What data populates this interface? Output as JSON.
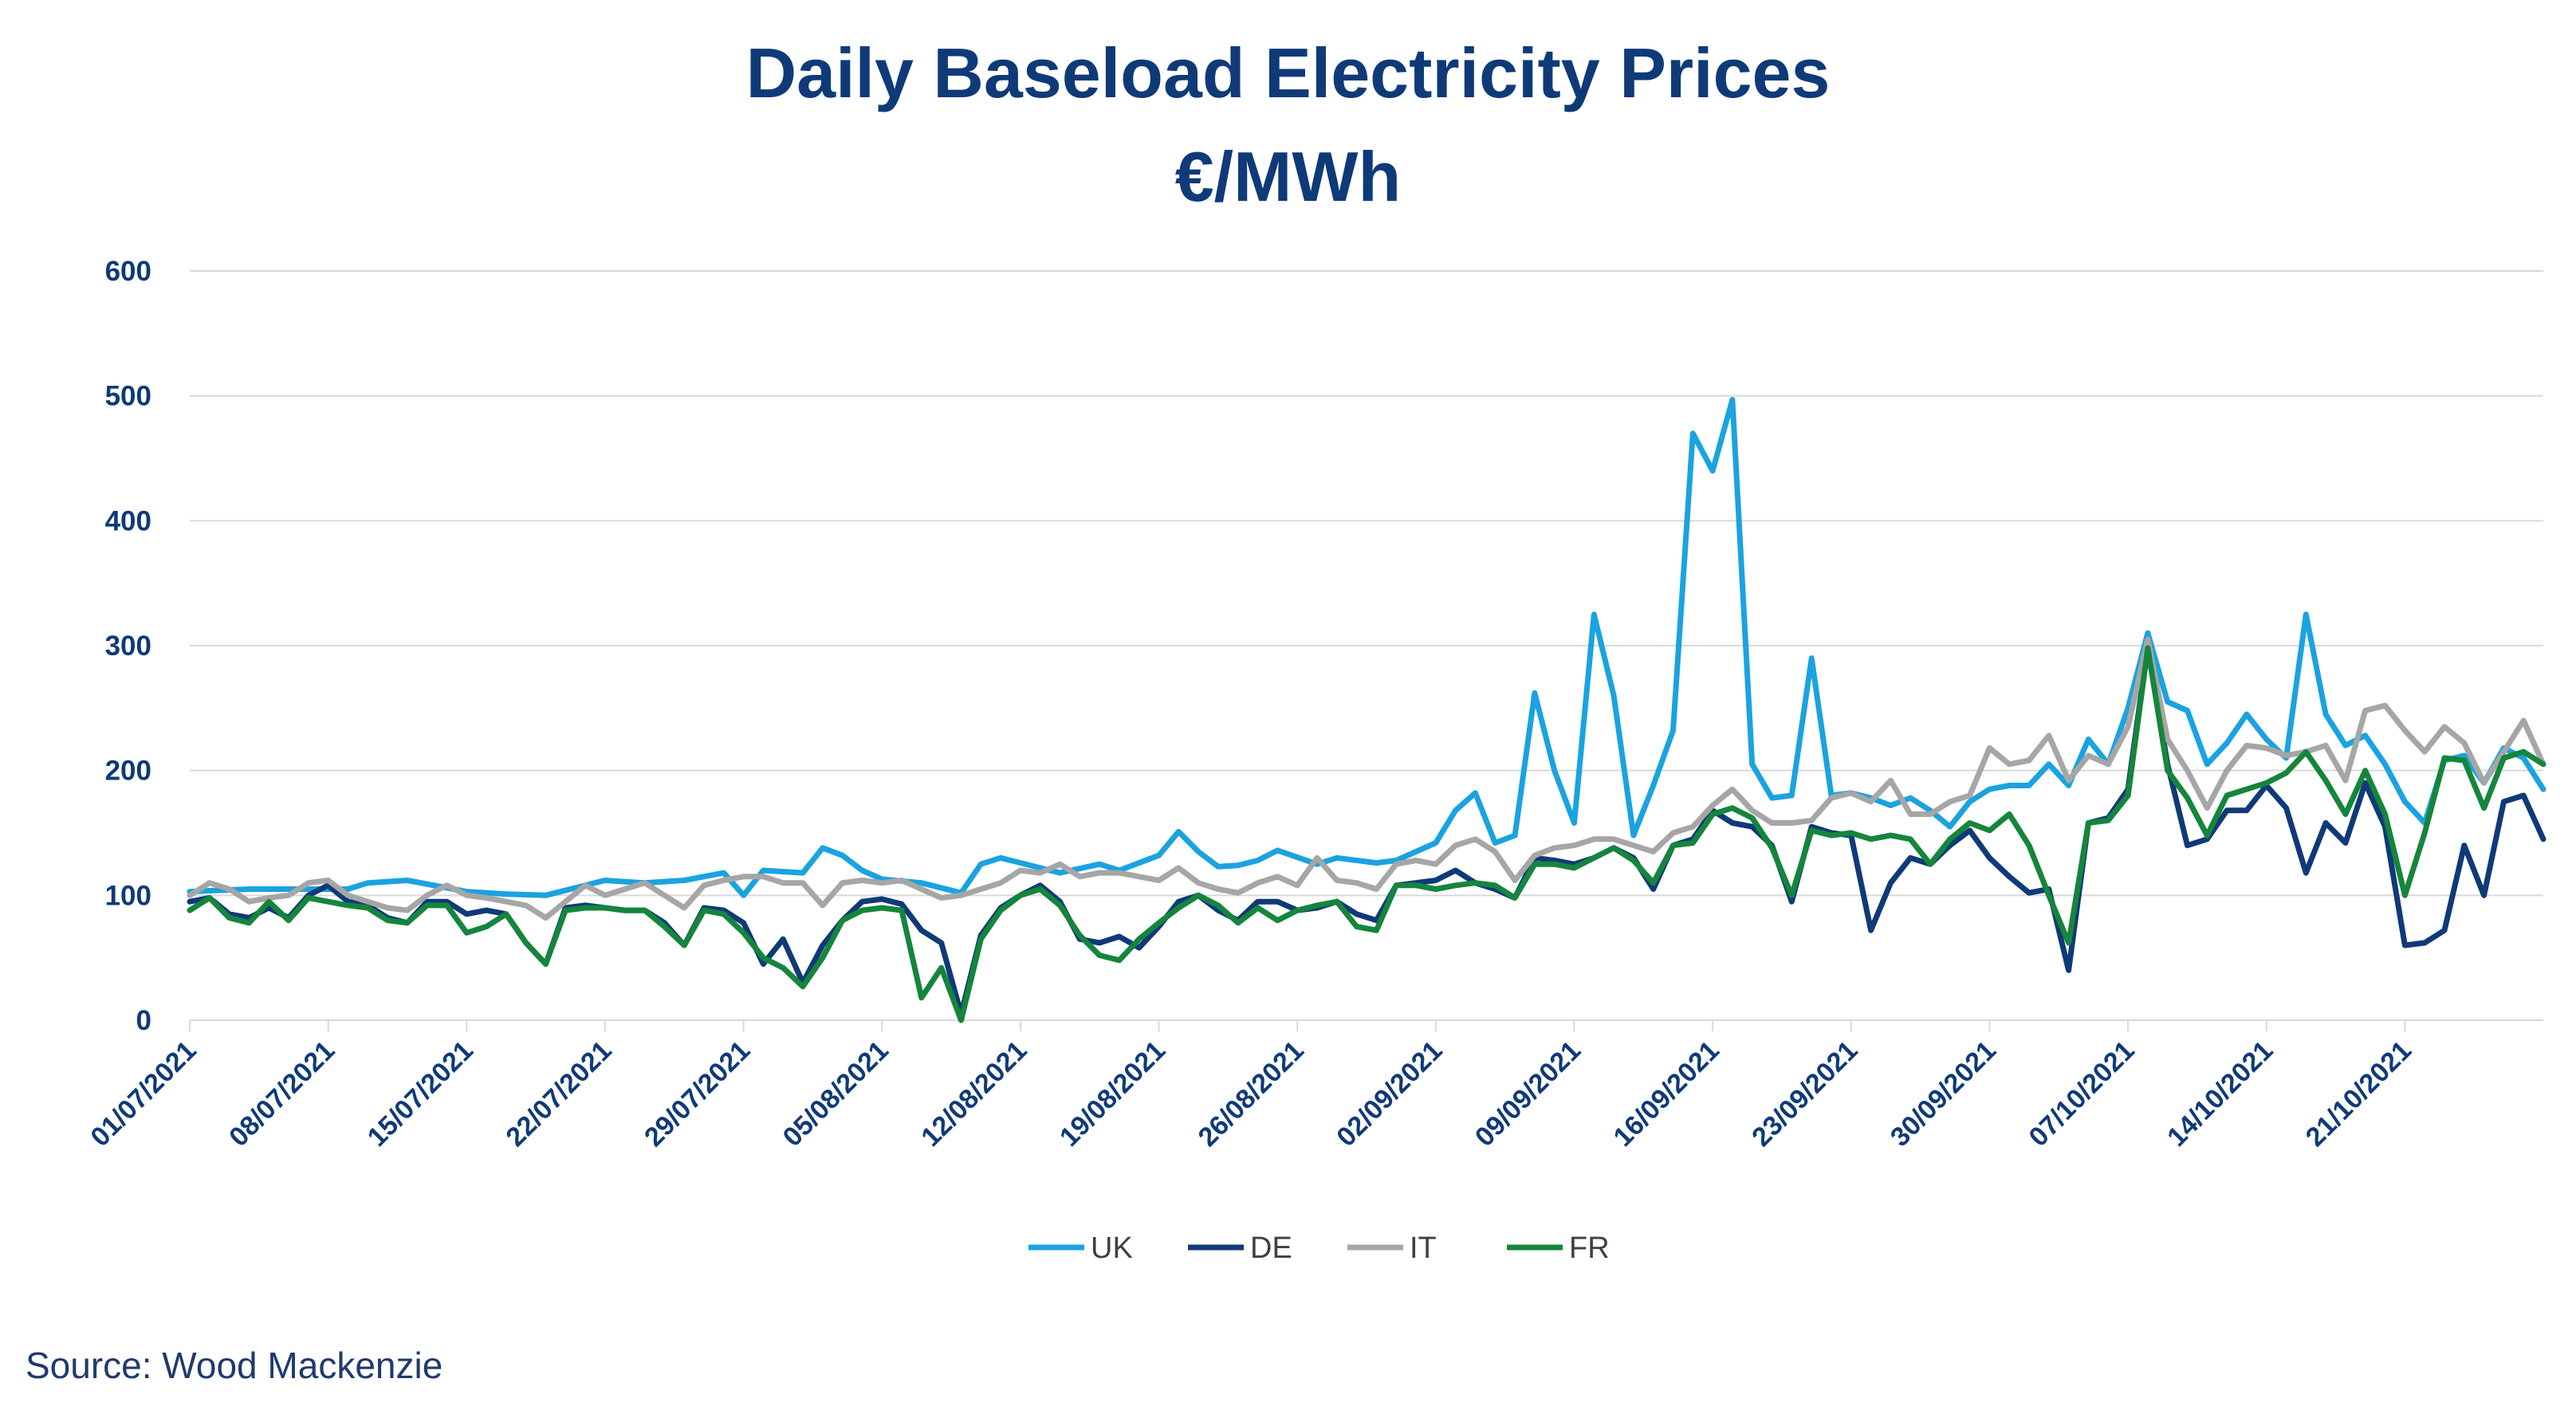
{
  "chart_data": {
    "type": "line",
    "title": "Daily Baseload Electricity Prices",
    "subtitle": "€/MWh",
    "ylim": [
      0,
      600
    ],
    "yticks": [
      0,
      100,
      200,
      300,
      400,
      500,
      600
    ],
    "grid": true,
    "legend_position": "bottom",
    "x_start": "01/07/2021",
    "x_end": "27/10/2021",
    "x_ticks": [
      "01/07/2021",
      "08/07/2021",
      "15/07/2021",
      "22/07/2021",
      "29/07/2021",
      "05/08/2021",
      "12/08/2021",
      "19/08/2021",
      "26/08/2021",
      "02/09/2021",
      "09/09/2021",
      "16/09/2021",
      "23/09/2021",
      "30/09/2021",
      "07/10/2021",
      "14/10/2021",
      "21/10/2021"
    ],
    "series": [
      {
        "name": "UK",
        "color": "#1aa3e0",
        "values": [
          "01/07/2021",
          103,
          "04/07/2021",
          105,
          "09/07/2021",
          105,
          "10/07/2021",
          110,
          "12/07/2021",
          112,
          "15/07/2021",
          103,
          "17/07/2021",
          101,
          "19/07/2021",
          100,
          "22/07/2021",
          112,
          "24/07/2021",
          110,
          "26/07/2021",
          112,
          "28/07/2021",
          118,
          "29/07/2021",
          100,
          "30/07/2021",
          120,
          "01/08/2021",
          118,
          "02/08/2021",
          138,
          "03/08/2021",
          132,
          "04/08/2021",
          120,
          "05/08/2021",
          113,
          "07/08/2021",
          110,
          "09/08/2021",
          102,
          "10/08/2021",
          125,
          "11/08/2021",
          130,
          "14/08/2021",
          118,
          "16/08/2021",
          125,
          "17/08/2021",
          120,
          "19/08/2021",
          132,
          "20/08/2021",
          151,
          "21/08/2021",
          135,
          "22/08/2021",
          123,
          "23/08/2021",
          124,
          "24/08/2021",
          128,
          "25/08/2021",
          136,
          "27/08/2021",
          125,
          "28/08/2021",
          130,
          "30/08/2021",
          126,
          "31/08/2021",
          128,
          "01/09/2021",
          135,
          "02/09/2021",
          142,
          "03/09/2021",
          168,
          "04/09/2021",
          182,
          "05/09/2021",
          142,
          "06/09/2021",
          148,
          "07/09/2021",
          262,
          "08/09/2021",
          200,
          "09/09/2021",
          158,
          "10/09/2021",
          325,
          "11/09/2021",
          260,
          "12/09/2021",
          148,
          "13/09/2021",
          188,
          "14/09/2021",
          232,
          "15/09/2021",
          470,
          "16/09/2021",
          440,
          "17/09/2021",
          497,
          "18/09/2021",
          205,
          "19/09/2021",
          178,
          "20/09/2021",
          180,
          "21/09/2021",
          290,
          "22/09/2021",
          180,
          "23/09/2021",
          182,
          "24/09/2021",
          178,
          "25/09/2021",
          172,
          "26/09/2021",
          178,
          "27/09/2021",
          168,
          "28/09/2021",
          155,
          "29/09/2021",
          175,
          "30/09/2021",
          185,
          "01/10/2021",
          188,
          "02/10/2021",
          188,
          "03/10/2021",
          205,
          "04/10/2021",
          188,
          "05/10/2021",
          225,
          "06/10/2021",
          205,
          "07/10/2021",
          250,
          "08/10/2021",
          310,
          "09/10/2021",
          255,
          "10/10/2021",
          248,
          "11/10/2021",
          205,
          "12/10/2021",
          222,
          "13/10/2021",
          245,
          "14/10/2021",
          225,
          "15/10/2021",
          210,
          "16/10/2021",
          325,
          "17/10/2021",
          245,
          "18/10/2021",
          220,
          "19/10/2021",
          228,
          "20/10/2021",
          205,
          "21/10/2021",
          175,
          "22/10/2021",
          158,
          "23/10/2021",
          208,
          "24/10/2021",
          212,
          "25/10/2021",
          190,
          "26/10/2021",
          218,
          "27/10/2021",
          210,
          "28/10/2021",
          185
        ]
      },
      {
        "name": "DE",
        "color": "#0f3a78",
        "values": [
          "01/07/2021",
          95,
          "02/07/2021",
          98,
          "03/07/2021",
          85,
          "04/07/2021",
          82,
          "05/07/2021",
          90,
          "06/07/2021",
          82,
          "07/07/2021",
          100,
          "08/07/2021",
          108,
          "09/07/2021",
          95,
          "10/07/2021",
          92,
          "11/07/2021",
          82,
          "12/07/2021",
          78,
          "13/07/2021",
          95,
          "14/07/2021",
          95,
          "15/07/2021",
          85,
          "16/07/2021",
          88,
          "17/07/2021",
          85,
          "18/07/2021",
          62,
          "19/07/2021",
          45,
          "20/07/2021",
          90,
          "21/07/2021",
          92,
          "22/07/2021",
          90,
          "23/07/2021",
          88,
          "24/07/2021",
          88,
          "25/07/2021",
          78,
          "26/07/2021",
          60,
          "27/07/2021",
          90,
          "28/07/2021",
          88,
          "29/07/2021",
          78,
          "30/07/2021",
          45,
          "31/07/2021",
          65,
          "01/08/2021",
          30,
          "02/08/2021",
          60,
          "03/08/2021",
          80,
          "04/08/2021",
          95,
          "05/08/2021",
          97,
          "06/08/2021",
          93,
          "07/08/2021",
          72,
          "08/08/2021",
          62,
          "09/08/2021",
          5,
          "10/08/2021",
          68,
          "11/08/2021",
          90,
          "12/08/2021",
          100,
          "13/08/2021",
          108,
          "14/08/2021",
          95,
          "15/08/2021",
          65,
          "16/08/2021",
          62,
          "17/08/2021",
          67,
          "18/08/2021",
          58,
          "19/08/2021",
          75,
          "20/08/2021",
          95,
          "21/08/2021",
          100,
          "22/08/2021",
          88,
          "23/08/2021",
          80,
          "24/08/2021",
          95,
          "25/08/2021",
          95,
          "26/08/2021",
          88,
          "27/08/2021",
          90,
          "28/08/2021",
          95,
          "29/08/2021",
          85,
          "30/08/2021",
          80,
          "31/08/2021",
          108,
          "01/09/2021",
          110,
          "02/09/2021",
          112,
          "03/09/2021",
          120,
          "04/09/2021",
          110,
          "05/09/2021",
          105,
          "06/09/2021",
          98,
          "07/09/2021",
          130,
          "08/09/2021",
          128,
          "09/09/2021",
          125,
          "10/09/2021",
          130,
          "11/09/2021",
          138,
          "12/09/2021",
          130,
          "13/09/2021",
          105,
          "14/09/2021",
          140,
          "15/09/2021",
          145,
          "16/09/2021",
          168,
          "17/09/2021",
          158,
          "18/09/2021",
          155,
          "19/09/2021",
          140,
          "20/09/2021",
          95,
          "21/09/2021",
          155,
          "22/09/2021",
          150,
          "23/09/2021",
          148,
          "24/09/2021",
          72,
          "25/09/2021",
          110,
          "26/09/2021",
          130,
          "27/09/2021",
          125,
          "28/09/2021",
          140,
          "29/09/2021",
          152,
          "30/09/2021",
          130,
          "01/10/2021",
          115,
          "02/10/2021",
          102,
          "03/10/2021",
          105,
          "04/10/2021",
          40,
          "05/10/2021",
          158,
          "06/10/2021",
          162,
          "07/10/2021",
          185,
          "08/10/2021",
          300,
          "09/10/2021",
          205,
          "10/10/2021",
          140,
          "11/10/2021",
          145,
          "12/10/2021",
          168,
          "13/10/2021",
          168,
          "14/10/2021",
          188,
          "15/10/2021",
          170,
          "16/10/2021",
          118,
          "17/10/2021",
          158,
          "18/10/2021",
          142,
          "19/10/2021",
          190,
          "20/10/2021",
          155,
          "21/10/2021",
          60,
          "22/10/2021",
          62,
          "23/10/2021",
          72,
          "24/10/2021",
          140,
          "25/10/2021",
          100,
          "26/10/2021",
          175,
          "27/10/2021",
          180,
          "28/10/2021",
          145
        ]
      },
      {
        "name": "IT",
        "color": "#a6a6a6",
        "values": [
          "01/07/2021",
          100,
          "02/07/2021",
          110,
          "03/07/2021",
          105,
          "04/07/2021",
          95,
          "05/07/2021",
          98,
          "06/07/2021",
          100,
          "07/07/2021",
          110,
          "08/07/2021",
          112,
          "09/07/2021",
          100,
          "10/07/2021",
          95,
          "11/07/2021",
          90,
          "12/07/2021",
          88,
          "13/07/2021",
          100,
          "14/07/2021",
          108,
          "15/07/2021",
          100,
          "16/07/2021",
          98,
          "17/07/2021",
          95,
          "18/07/2021",
          92,
          "19/07/2021",
          82,
          "20/07/2021",
          95,
          "21/07/2021",
          108,
          "22/07/2021",
          100,
          "23/07/2021",
          105,
          "24/07/2021",
          110,
          "25/07/2021",
          100,
          "26/07/2021",
          90,
          "27/07/2021",
          108,
          "28/07/2021",
          112,
          "29/07/2021",
          115,
          "30/07/2021",
          115,
          "31/07/2021",
          110,
          "01/08/2021",
          110,
          "02/08/2021",
          92,
          "03/08/2021",
          110,
          "04/08/2021",
          112,
          "05/08/2021",
          110,
          "06/08/2021",
          112,
          "07/08/2021",
          105,
          "08/08/2021",
          98,
          "09/08/2021",
          100,
          "10/08/2021",
          105,
          "11/08/2021",
          110,
          "12/08/2021",
          120,
          "13/08/2021",
          118,
          "14/08/2021",
          125,
          "15/08/2021",
          115,
          "16/08/2021",
          118,
          "17/08/2021",
          118,
          "18/08/2021",
          115,
          "19/08/2021",
          112,
          "20/08/2021",
          122,
          "21/08/2021",
          110,
          "22/08/2021",
          105,
          "23/08/2021",
          102,
          "24/08/2021",
          110,
          "25/08/2021",
          115,
          "26/08/2021",
          108,
          "27/08/2021",
          130,
          "28/08/2021",
          112,
          "29/08/2021",
          110,
          "30/08/2021",
          105,
          "31/08/2021",
          125,
          "01/09/2021",
          128,
          "02/09/2021",
          125,
          "03/09/2021",
          140,
          "04/09/2021",
          145,
          "05/09/2021",
          135,
          "06/09/2021",
          112,
          "07/09/2021",
          132,
          "08/09/2021",
          138,
          "09/09/2021",
          140,
          "10/09/2021",
          145,
          "11/09/2021",
          145,
          "12/09/2021",
          140,
          "13/09/2021",
          135,
          "14/09/2021",
          150,
          "15/09/2021",
          155,
          "16/09/2021",
          172,
          "17/09/2021",
          185,
          "18/09/2021",
          168,
          "19/09/2021",
          158,
          "20/09/2021",
          158,
          "21/09/2021",
          160,
          "22/09/2021",
          178,
          "23/09/2021",
          182,
          "24/09/2021",
          175,
          "25/09/2021",
          192,
          "26/09/2021",
          165,
          "27/09/2021",
          165,
          "28/09/2021",
          175,
          "29/09/2021",
          180,
          "30/09/2021",
          218,
          "01/10/2021",
          205,
          "02/10/2021",
          208,
          "03/10/2021",
          228,
          "04/10/2021",
          192,
          "05/10/2021",
          212,
          "06/10/2021",
          205,
          "07/10/2021",
          235,
          "08/10/2021",
          305,
          "09/10/2021",
          225,
          "10/10/2021",
          200,
          "11/10/2021",
          170,
          "12/10/2021",
          200,
          "13/10/2021",
          220,
          "14/10/2021",
          218,
          "15/10/2021",
          212,
          "16/10/2021",
          215,
          "17/10/2021",
          220,
          "18/10/2021",
          192,
          "19/10/2021",
          248,
          "20/10/2021",
          252,
          "21/10/2021",
          232,
          "22/10/2021",
          215,
          "23/10/2021",
          235,
          "24/10/2021",
          222,
          "25/10/2021",
          190,
          "26/10/2021",
          215,
          "27/10/2021",
          240,
          "28/10/2021",
          205
        ]
      },
      {
        "name": "FR",
        "color": "#15853c",
        "values": [
          "01/07/2021",
          88,
          "02/07/2021",
          98,
          "03/07/2021",
          82,
          "04/07/2021",
          78,
          "05/07/2021",
          95,
          "06/07/2021",
          80,
          "07/07/2021",
          98,
          "08/07/2021",
          95,
          "09/07/2021",
          92,
          "10/07/2021",
          90,
          "11/07/2021",
          80,
          "12/07/2021",
          78,
          "13/07/2021",
          92,
          "14/07/2021",
          92,
          "15/07/2021",
          70,
          "16/07/2021",
          75,
          "17/07/2021",
          85,
          "18/07/2021",
          62,
          "19/07/2021",
          45,
          "20/07/2021",
          88,
          "21/07/2021",
          90,
          "22/07/2021",
          90,
          "23/07/2021",
          88,
          "24/07/2021",
          88,
          "25/07/2021",
          75,
          "26/07/2021",
          60,
          "27/07/2021",
          88,
          "28/07/2021",
          85,
          "29/07/2021",
          70,
          "30/07/2021",
          50,
          "31/07/2021",
          42,
          "01/08/2021",
          27,
          "02/08/2021",
          50,
          "03/08/2021",
          80,
          "04/08/2021",
          88,
          "05/08/2021",
          90,
          "06/08/2021",
          88,
          "07/08/2021",
          18,
          "08/08/2021",
          42,
          "09/08/2021",
          0,
          "10/08/2021",
          65,
          "11/08/2021",
          88,
          "12/08/2021",
          100,
          "13/08/2021",
          105,
          "14/08/2021",
          92,
          "15/08/2021",
          68,
          "16/08/2021",
          52,
          "17/08/2021",
          48,
          "18/08/2021",
          65,
          "19/08/2021",
          78,
          "20/08/2021",
          90,
          "21/08/2021",
          100,
          "22/08/2021",
          92,
          "23/08/2021",
          78,
          "24/08/2021",
          90,
          "25/08/2021",
          80,
          "26/08/2021",
          88,
          "27/08/2021",
          92,
          "28/08/2021",
          95,
          "29/08/2021",
          75,
          "30/08/2021",
          72,
          "31/08/2021",
          108,
          "01/09/2021",
          108,
          "02/09/2021",
          105,
          "03/09/2021",
          108,
          "04/09/2021",
          110,
          "05/09/2021",
          108,
          "06/09/2021",
          98,
          "07/09/2021",
          125,
          "08/09/2021",
          125,
          "09/09/2021",
          122,
          "10/09/2021",
          130,
          "11/09/2021",
          138,
          "12/09/2021",
          128,
          "13/09/2021",
          110,
          "14/09/2021",
          140,
          "15/09/2021",
          142,
          "16/09/2021",
          165,
          "17/09/2021",
          170,
          "18/09/2021",
          162,
          "19/09/2021",
          138,
          "20/09/2021",
          100,
          "21/09/2021",
          152,
          "22/09/2021",
          148,
          "23/09/2021",
          150,
          "24/09/2021",
          145,
          "25/09/2021",
          148,
          "26/09/2021",
          145,
          "27/09/2021",
          125,
          "28/09/2021",
          145,
          "29/09/2021",
          158,
          "30/09/2021",
          152,
          "01/10/2021",
          165,
          "02/10/2021",
          140,
          "03/10/2021",
          100,
          "04/10/2021",
          62,
          "05/10/2021",
          158,
          "06/10/2021",
          160,
          "07/10/2021",
          180,
          "08/10/2021",
          298,
          "09/10/2021",
          200,
          "10/10/2021",
          178,
          "11/10/2021",
          148,
          "12/10/2021",
          180,
          "13/10/2021",
          185,
          "14/10/2021",
          190,
          "15/10/2021",
          198,
          "16/10/2021",
          215,
          "17/10/2021",
          192,
          "18/10/2021",
          165,
          "19/10/2021",
          200,
          "20/10/2021",
          165,
          "21/10/2021",
          100,
          "22/10/2021",
          150,
          "23/10/2021",
          210,
          "24/10/2021",
          208,
          "25/10/2021",
          170,
          "26/10/2021",
          210,
          "27/10/2021",
          215,
          "28/10/2021",
          205
        ]
      }
    ]
  },
  "source": "Source: Wood Mackenzie"
}
